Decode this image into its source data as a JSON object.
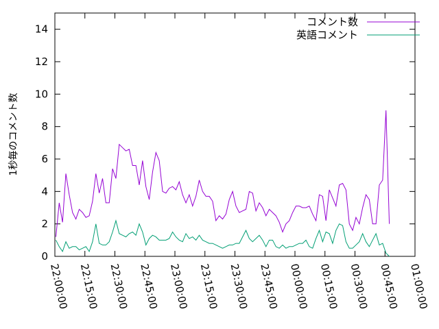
{
  "chart_data": {
    "type": "line",
    "ylabel": "1秒毎のコメント数",
    "x": [
      "22:00:30",
      "22:02:10",
      "22:03:50",
      "22:05:30",
      "22:07:10",
      "22:08:50",
      "22:10:30",
      "22:12:10",
      "22:13:50",
      "22:15:30",
      "22:17:10",
      "22:18:50",
      "22:20:30",
      "22:22:10",
      "22:23:50",
      "22:25:30",
      "22:27:10",
      "22:28:50",
      "22:30:30",
      "22:32:10",
      "22:33:50",
      "22:35:30",
      "22:37:10",
      "22:38:50",
      "22:40:30",
      "22:42:10",
      "22:43:50",
      "22:45:30",
      "22:47:10",
      "22:48:50",
      "22:50:30",
      "22:52:10",
      "22:53:50",
      "22:55:30",
      "22:57:10",
      "22:58:50",
      "23:00:30",
      "23:02:10",
      "23:03:50",
      "23:05:30",
      "23:07:10",
      "23:08:50",
      "23:10:30",
      "23:12:10",
      "23:13:50",
      "23:15:30",
      "23:17:10",
      "23:18:50",
      "23:20:30",
      "23:22:10",
      "23:23:50",
      "23:25:30",
      "23:27:10",
      "23:28:50",
      "23:30:30",
      "23:32:10",
      "23:33:50",
      "23:35:30",
      "23:37:10",
      "23:38:50",
      "23:40:30",
      "23:42:10",
      "23:43:50",
      "23:45:30",
      "23:47:10",
      "23:48:50",
      "23:50:30",
      "23:52:10",
      "23:53:50",
      "23:55:30",
      "23:57:10",
      "23:58:50",
      "00:00:30",
      "00:02:10",
      "00:03:50",
      "00:05:30",
      "00:07:10",
      "00:08:50",
      "00:10:30",
      "00:12:10",
      "00:13:50",
      "00:15:30",
      "00:17:10",
      "00:18:50",
      "00:20:30",
      "00:22:10",
      "00:23:50",
      "00:25:30",
      "00:27:10",
      "00:28:50",
      "00:30:30",
      "00:32:10",
      "00:33:50",
      "00:35:30",
      "00:37:10",
      "00:38:50",
      "00:40:30",
      "00:42:10",
      "00:43:50",
      "00:45:30",
      "00:47:10"
    ],
    "series": [
      {
        "name": "コメント数",
        "color": "#9400d3",
        "values": [
          1.2,
          3.3,
          2.1,
          5.1,
          3.8,
          2.7,
          2.3,
          2.9,
          2.7,
          2.4,
          2.5,
          3.4,
          5.1,
          3.9,
          4.8,
          3.3,
          3.3,
          5.4,
          4.8,
          6.9,
          6.7,
          6.5,
          6.6,
          5.6,
          5.6,
          4.4,
          5.9,
          4.3,
          3.5,
          5.2,
          6.4,
          5.9,
          4.0,
          3.9,
          4.2,
          4.3,
          4.1,
          4.6,
          3.8,
          3.3,
          3.8,
          3.1,
          3.7,
          4.7,
          4.0,
          3.7,
          3.7,
          3.4,
          2.2,
          2.5,
          2.3,
          2.6,
          3.5,
          4.0,
          3.1,
          2.7,
          2.8,
          2.9,
          4.0,
          3.9,
          2.8,
          3.3,
          3.0,
          2.5,
          2.9,
          2.7,
          2.5,
          2.1,
          1.5,
          2.0,
          2.2,
          2.7,
          3.1,
          3.1,
          3.0,
          3.0,
          3.1,
          2.6,
          2.2,
          3.8,
          3.7,
          2.2,
          4.1,
          3.6,
          3.1,
          4.4,
          4.5,
          4.1,
          2.0,
          1.6,
          2.4,
          2.0,
          3.0,
          3.8,
          3.5,
          2.0,
          2.0,
          4.4,
          4.7,
          9.0,
          2.0
        ]
      },
      {
        "name": "英語コメント",
        "color": "#009e73",
        "values": [
          1.0,
          0.6,
          0.3,
          0.9,
          0.5,
          0.6,
          0.6,
          0.4,
          0.5,
          0.6,
          0.3,
          0.9,
          2.0,
          0.8,
          0.7,
          0.7,
          0.9,
          1.5,
          2.2,
          1.4,
          1.3,
          1.2,
          1.4,
          1.5,
          1.3,
          2.0,
          1.5,
          0.7,
          1.1,
          1.3,
          1.2,
          1.0,
          1.0,
          1.0,
          1.1,
          1.5,
          1.2,
          1.0,
          0.9,
          1.4,
          1.1,
          1.2,
          1.0,
          1.3,
          1.0,
          0.9,
          0.8,
          0.8,
          0.7,
          0.6,
          0.5,
          0.6,
          0.7,
          0.7,
          0.8,
          0.8,
          1.2,
          1.6,
          1.1,
          0.9,
          1.1,
          1.3,
          1.0,
          0.6,
          1.0,
          1.0,
          0.6,
          0.5,
          0.7,
          0.5,
          0.6,
          0.6,
          0.7,
          0.8,
          0.8,
          1.0,
          0.6,
          0.5,
          1.1,
          1.6,
          0.9,
          1.5,
          1.4,
          0.8,
          1.6,
          2.0,
          1.9,
          0.9,
          0.5,
          0.5,
          0.7,
          0.9,
          1.4,
          0.9,
          0.6,
          1.0,
          1.4,
          0.7,
          0.8,
          0.2,
          0.0
        ]
      }
    ],
    "xlim": [
      "22:00:00",
      "01:00:00"
    ],
    "xticks": [
      "22:00:00",
      "22:15:00",
      "22:30:00",
      "22:45:00",
      "23:00:00",
      "23:15:00",
      "23:30:00",
      "23:45:00",
      "00:00:00",
      "00:15:00",
      "00:30:00",
      "00:45:00",
      "01:00:00"
    ],
    "ylim": [
      0,
      15
    ],
    "yticks": [
      0,
      2,
      4,
      6,
      8,
      10,
      12,
      14
    ],
    "legend": "top-right"
  }
}
